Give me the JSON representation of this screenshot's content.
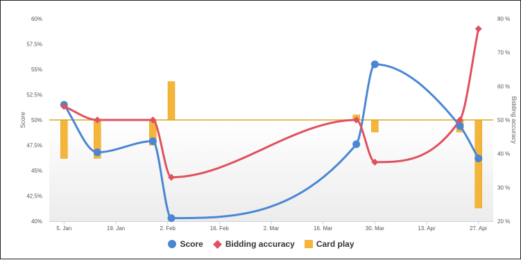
{
  "chart_data": {
    "type": "line",
    "title": "",
    "xlabel": "",
    "ylabel": "Score",
    "y2label": "Bidding accuracy",
    "x_dates": [
      "2015-01-05",
      "2015-01-14",
      "2015-01-29",
      "2015-02-03",
      "2015-03-25",
      "2015-03-30",
      "2015-04-22",
      "2015-04-27"
    ],
    "x_ticks": [
      {
        "date": "2015-01-05",
        "label": "5. Jan"
      },
      {
        "date": "2015-01-19",
        "label": "19. Jan"
      },
      {
        "date": "2015-02-02",
        "label": "2. Feb"
      },
      {
        "date": "2015-02-16",
        "label": "16. Feb"
      },
      {
        "date": "2015-03-02",
        "label": "2. Mar"
      },
      {
        "date": "2015-03-16",
        "label": "16. Mar"
      },
      {
        "date": "2015-03-30",
        "label": "30. Mar"
      },
      {
        "date": "2015-04-13",
        "label": "13. Apr"
      },
      {
        "date": "2015-04-27",
        "label": "27. Apr"
      }
    ],
    "y_left": {
      "min": 40,
      "max": 60,
      "threshold": 50,
      "ticks": [
        {
          "value": 40,
          "label": "40%"
        },
        {
          "value": 42.5,
          "label": "42.5%"
        },
        {
          "value": 45,
          "label": "45%"
        },
        {
          "value": 47.5,
          "label": "47.5%"
        },
        {
          "value": 50,
          "label": "50%"
        },
        {
          "value": 52.5,
          "label": "52.5%"
        },
        {
          "value": 55,
          "label": "55%"
        },
        {
          "value": 57.5,
          "label": "57.5%"
        },
        {
          "value": 60,
          "label": "60%"
        }
      ]
    },
    "y_right": {
      "min": 20,
      "max": 80,
      "ticks": [
        {
          "value": 20,
          "label": "20 %"
        },
        {
          "value": 30,
          "label": "30 %"
        },
        {
          "value": 40,
          "label": "40 %"
        },
        {
          "value": 50,
          "label": "50 %"
        },
        {
          "value": 60,
          "label": "60 %"
        },
        {
          "value": 70,
          "label": "70 %"
        },
        {
          "value": 80,
          "label": "80 %"
        }
      ]
    },
    "series": [
      {
        "name": "Score",
        "kind": "spline",
        "axis": "left",
        "marker": "circle",
        "color": "#4a86d4",
        "points": [
          {
            "date": "2015-01-05",
            "value": 51.5
          },
          {
            "date": "2015-01-14",
            "value": 46.8
          },
          {
            "date": "2015-01-29",
            "value": 47.9
          },
          {
            "date": "2015-02-03",
            "value": 40.3
          },
          {
            "date": "2015-03-25",
            "value": 47.6
          },
          {
            "date": "2015-03-30",
            "value": 55.5
          },
          {
            "date": "2015-04-22",
            "value": 49.4
          },
          {
            "date": "2015-04-27",
            "value": 46.2
          }
        ]
      },
      {
        "name": "Bidding accuracy",
        "kind": "spline",
        "axis": "right",
        "marker": "diamond",
        "color": "#e0505e",
        "points": [
          {
            "date": "2015-01-05",
            "value": 54
          },
          {
            "date": "2015-01-14",
            "value": 50
          },
          {
            "date": "2015-01-29",
            "value": 50
          },
          {
            "date": "2015-02-03",
            "value": 33
          },
          {
            "date": "2015-03-25",
            "value": 50
          },
          {
            "date": "2015-03-30",
            "value": 37.5
          },
          {
            "date": "2015-04-22",
            "value": 50
          },
          {
            "date": "2015-04-27",
            "value": 77
          }
        ]
      },
      {
        "name": "Card play",
        "kind": "column",
        "axis": "left",
        "marker": "square",
        "color": "#f3b63a",
        "points": [
          {
            "date": "2015-01-05",
            "value": 46.2
          },
          {
            "date": "2015-01-14",
            "value": 46.2
          },
          {
            "date": "2015-01-29",
            "value": 47.5
          },
          {
            "date": "2015-02-03",
            "value": 53.8
          },
          {
            "date": "2015-03-25",
            "value": 50.5
          },
          {
            "date": "2015-03-30",
            "value": 48.8
          },
          {
            "date": "2015-04-22",
            "value": 48.8
          },
          {
            "date": "2015-04-27",
            "value": 41.3
          }
        ]
      }
    ],
    "legend": {
      "position": "bottom-center"
    },
    "grid": false
  },
  "legend_labels": {
    "score": "Score",
    "bidding": "Bidding accuracy",
    "cardplay": "Card play"
  },
  "colors": {
    "score": "#4a86d4",
    "bidding": "#e0505e",
    "cardplay": "#f3b63a",
    "threshold": "#d9a821"
  }
}
